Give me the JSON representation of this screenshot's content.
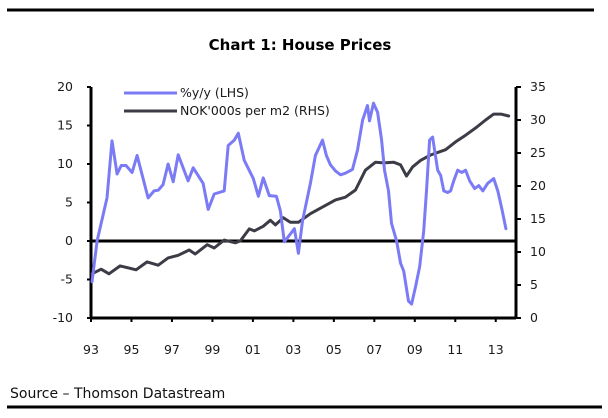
{
  "chart_data": {
    "type": "line",
    "title": "Chart 1: House Prices",
    "source": "Source – Thomson Datastream",
    "xlabel": "",
    "ylabel_left": "",
    "ylabel_right": "",
    "xlim": [
      1993,
      2014
    ],
    "x_ticks": [
      1993,
      1995,
      1997,
      1999,
      2001,
      2003,
      2005,
      2007,
      2009,
      2011,
      2013
    ],
    "x_tick_labels": [
      "93",
      "95",
      "97",
      "99",
      "01",
      "03",
      "05",
      "07",
      "09",
      "11",
      "13"
    ],
    "ylim_left": [
      -10,
      20
    ],
    "y_ticks_left": [
      20,
      15,
      10,
      5,
      0,
      -5,
      -10
    ],
    "y_tick_labels_left": [
      "20",
      "15",
      "10",
      "5",
      "0",
      "-5",
      "-10"
    ],
    "ylim_right": [
      0,
      35
    ],
    "y_ticks_right": [
      35,
      30,
      25,
      20,
      15,
      10,
      5,
      0
    ],
    "y_tick_labels_right": [
      "35",
      "30",
      "25",
      "20",
      "15",
      "10",
      "5",
      "0"
    ],
    "zero_line_left": 0,
    "grid": false,
    "legend_position": "top-left",
    "series": [
      {
        "name": "%y/y (LHS)",
        "axis": "left",
        "color": "#7b7bf5",
        "x": [
          1993.05,
          1993.3,
          1993.79,
          1994.04,
          1994.29,
          1994.49,
          1994.73,
          1995.03,
          1995.28,
          1995.82,
          1996.12,
          1996.32,
          1996.56,
          1996.81,
          1997.06,
          1997.31,
          1997.8,
          1998.05,
          1998.54,
          1998.79,
          1999.09,
          1999.58,
          1999.78,
          2000.08,
          2000.28,
          2000.57,
          2001.02,
          2001.27,
          2001.51,
          2001.81,
          2002.16,
          2002.36,
          2002.55,
          2002.85,
          2003.05,
          2003.25,
          2003.45,
          2003.84,
          2004.09,
          2004.44,
          2004.63,
          2004.83,
          2005.08,
          2005.33,
          2005.57,
          2005.92,
          2006.17,
          2006.42,
          2006.66,
          2006.76,
          2006.96,
          2007.16,
          2007.36,
          2007.5,
          2007.7,
          2007.85,
          2008.1,
          2008.3,
          2008.45,
          2008.69,
          2008.84,
          2009.04,
          2009.24,
          2009.44,
          2009.58,
          2009.73,
          2009.88,
          2009.98,
          2010.13,
          2010.28,
          2010.43,
          2010.62,
          2010.77,
          2010.92,
          2011.12,
          2011.32,
          2011.51,
          2011.71,
          2011.96,
          2012.16,
          2012.36,
          2012.6,
          2012.9,
          2013.1,
          2013.3,
          2013.5
        ],
        "values": [
          -5.3,
          0,
          5.6,
          13.0,
          8.7,
          9.8,
          9.8,
          8.9,
          11.1,
          5.6,
          6.5,
          6.6,
          7.3,
          10.0,
          7.7,
          11.2,
          7.8,
          9.5,
          7.5,
          4.1,
          6.1,
          6.5,
          12.4,
          13.1,
          14.0,
          10.5,
          8.1,
          5.8,
          8.2,
          5.9,
          5.8,
          3.9,
          -0.1,
          0.9,
          1.6,
          -1.6,
          2.6,
          7.5,
          11.1,
          13.1,
          11.1,
          9.9,
          9.1,
          8.6,
          8.8,
          9.3,
          11.8,
          15.7,
          17.6,
          15.6,
          17.9,
          16.7,
          13.1,
          9.2,
          6.5,
          2.3,
          0,
          -2.9,
          -3.9,
          -7.8,
          -8.2,
          -5.9,
          -3.3,
          1.3,
          6.5,
          13.1,
          13.5,
          11.8,
          9.2,
          8.5,
          6.5,
          6.3,
          6.5,
          7.8,
          9.2,
          8.9,
          9.2,
          7.8,
          6.8,
          7.2,
          6.5,
          7.5,
          8.1,
          6.5,
          4.2,
          1.6
        ]
      },
      {
        "name": "NOK'000s per m2 (RHS)",
        "axis": "right",
        "color": "#3c3c46",
        "x": [
          1993.05,
          1993.5,
          1993.89,
          1994.44,
          1995.23,
          1995.77,
          1996.32,
          1996.81,
          1997.31,
          1997.85,
          1998.15,
          1998.74,
          1999.09,
          1999.58,
          2000.13,
          2000.38,
          2000.82,
          2001.07,
          2001.51,
          2001.86,
          2002.11,
          2002.5,
          2002.85,
          2003.25,
          2003.84,
          2004.44,
          2005.08,
          2005.57,
          2006.07,
          2006.56,
          2007.06,
          2007.46,
          2007.95,
          2008.3,
          2008.59,
          2008.89,
          2009.29,
          2009.78,
          2010.52,
          2011.02,
          2011.51,
          2012.01,
          2012.5,
          2012.9,
          2013.25,
          2013.64
        ],
        "values": [
          6.7,
          7.4,
          6.7,
          7.9,
          7.3,
          8.5,
          8.0,
          9.1,
          9.5,
          10.3,
          9.7,
          11.1,
          10.6,
          11.8,
          11.4,
          11.7,
          13.5,
          13.2,
          13.9,
          14.8,
          14.1,
          15.2,
          14.5,
          14.5,
          15.8,
          16.8,
          17.9,
          18.3,
          19.4,
          22.4,
          23.6,
          23.5,
          23.6,
          23.2,
          21.5,
          22.9,
          23.9,
          24.7,
          25.5,
          26.7,
          27.7,
          28.8,
          30.0,
          30.9,
          30.9,
          30.6
        ]
      }
    ]
  }
}
